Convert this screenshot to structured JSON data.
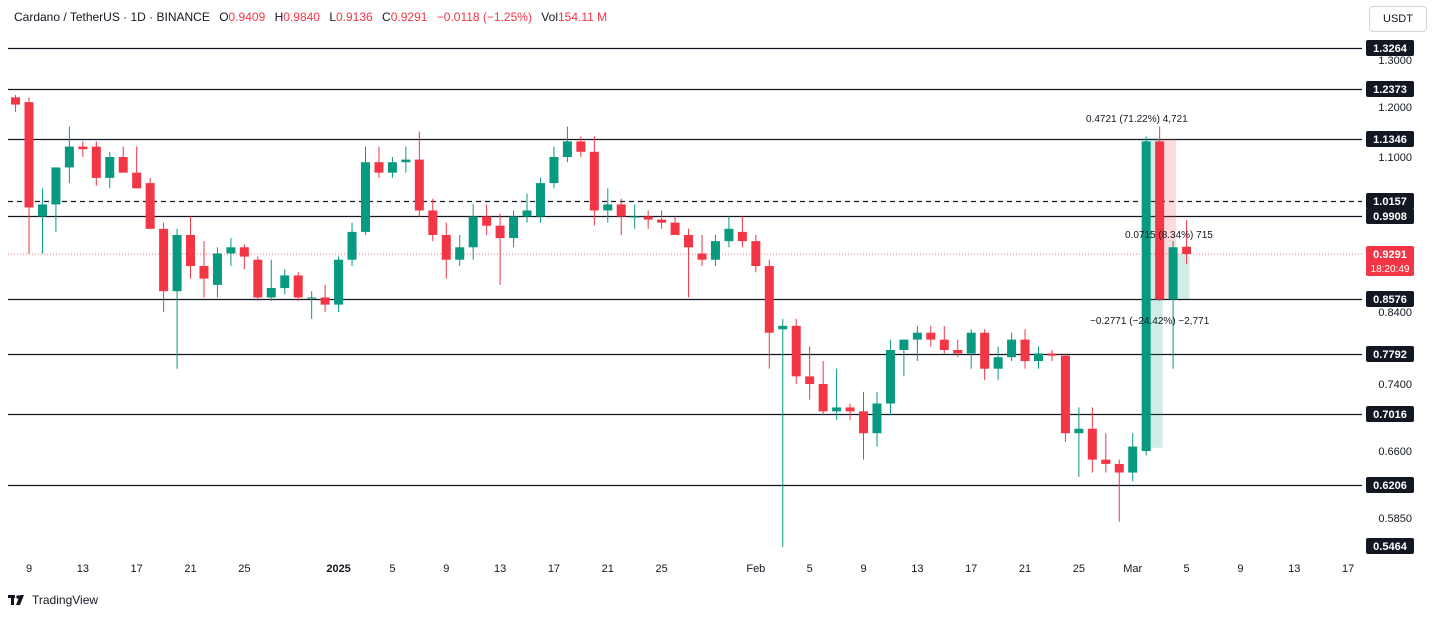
{
  "header": {
    "symbol": "Cardano / TetherUS · 1D · BINANCE",
    "o_label": "O",
    "o_value": "0.9409",
    "h_label": "H",
    "h_value": "0.9840",
    "l_label": "L",
    "l_value": "0.9136",
    "c_label": "C",
    "c_value": "0.9291",
    "change": "−0.0118 (−1.25%)",
    "vol_label": "Vol",
    "vol_value": "154.11 M"
  },
  "currency_button": "USDT",
  "brand": "TradingView",
  "colors": {
    "up": "#089981",
    "down": "#f23645",
    "line": "#131722",
    "axis_text": "#131722",
    "current_price": "#f23645"
  },
  "chart_data": {
    "type": "candlestick",
    "title": "Cardano / TetherUS · 1D · BINANCE",
    "y_axis_ticks": [
      "1.3000",
      "1.2000",
      "1.1000",
      "0.8400",
      "0.7400",
      "0.6600",
      "0.5850"
    ],
    "y_axis_tick_values": [
      1.3,
      1.2,
      1.1,
      0.84,
      0.74,
      0.66,
      0.585
    ],
    "x_axis_ticks": [
      {
        "label": "9",
        "day": 0,
        "bold": false
      },
      {
        "label": "13",
        "day": 4,
        "bold": false
      },
      {
        "label": "17",
        "day": 8,
        "bold": false
      },
      {
        "label": "21",
        "day": 12,
        "bold": false
      },
      {
        "label": "25",
        "day": 16,
        "bold": false
      },
      {
        "label": "2025",
        "day": 23,
        "bold": true
      },
      {
        "label": "5",
        "day": 27,
        "bold": false
      },
      {
        "label": "9",
        "day": 31,
        "bold": false
      },
      {
        "label": "13",
        "day": 35,
        "bold": false
      },
      {
        "label": "17",
        "day": 39,
        "bold": false
      },
      {
        "label": "21",
        "day": 43,
        "bold": false
      },
      {
        "label": "25",
        "day": 47,
        "bold": false
      },
      {
        "label": "Feb",
        "day": 54,
        "bold": false
      },
      {
        "label": "5",
        "day": 58,
        "bold": false
      },
      {
        "label": "9",
        "day": 62,
        "bold": false
      },
      {
        "label": "13",
        "day": 66,
        "bold": false
      },
      {
        "label": "17",
        "day": 70,
        "bold": false
      },
      {
        "label": "21",
        "day": 74,
        "bold": false
      },
      {
        "label": "25",
        "day": 78,
        "bold": false
      },
      {
        "label": "Mar",
        "day": 82,
        "bold": false
      },
      {
        "label": "5",
        "day": 86,
        "bold": false
      },
      {
        "label": "9",
        "day": 90,
        "bold": false
      },
      {
        "label": "13",
        "day": 94,
        "bold": false
      },
      {
        "label": "17",
        "day": 98,
        "bold": false
      }
    ],
    "levels": [
      {
        "label": "1.3264",
        "value": 1.3264,
        "style": "solid"
      },
      {
        "label": "1.2373",
        "value": 1.2373,
        "style": "solid"
      },
      {
        "label": "1.1346",
        "value": 1.1346,
        "style": "solid"
      },
      {
        "label": "1.0157",
        "value": 1.0157,
        "style": "dashed"
      },
      {
        "label": "0.9908",
        "value": 0.9908,
        "style": "solid"
      },
      {
        "label": "0.8576",
        "value": 0.8576,
        "style": "solid"
      },
      {
        "label": "0.7792",
        "value": 0.7792,
        "style": "solid"
      },
      {
        "label": "0.7016",
        "value": 0.7016,
        "style": "solid"
      },
      {
        "label": "0.6206",
        "value": 0.6206,
        "style": "solid"
      },
      {
        "label": "0.5464",
        "value": 0.5464,
        "style": "plain"
      }
    ],
    "current_price": {
      "label": "0.9291",
      "value": 0.9291,
      "countdown": "18:20:49"
    },
    "measurements": [
      {
        "label": "0.4721 (71.22%) 4,721",
        "from": 0.6636,
        "to": 1.1357,
        "day_start": 83,
        "day_end": 84,
        "color": "#089981"
      },
      {
        "label": "−0.2771 (−24.42%) −2,771",
        "from": 1.1347,
        "to": 0.8576,
        "day_start": 84,
        "day_end": 85,
        "color": "#f23645"
      },
      {
        "label": "0.0715 (8.34%) 715",
        "from": 0.8576,
        "to": 0.9291,
        "day_start": 85,
        "day_end": 86,
        "color": "#089981"
      }
    ],
    "candles": [
      {
        "day": -1,
        "o": 1.22,
        "h": 1.225,
        "l": 1.19,
        "c": 1.205
      },
      {
        "day": 0,
        "o": 1.21,
        "h": 1.22,
        "l": 0.93,
        "c": 1.005
      },
      {
        "day": 1,
        "o": 0.99,
        "h": 1.04,
        "l": 0.93,
        "c": 1.01
      },
      {
        "day": 2,
        "o": 1.01,
        "h": 1.08,
        "l": 0.965,
        "c": 1.08
      },
      {
        "day": 3,
        "o": 1.08,
        "h": 1.16,
        "l": 1.05,
        "c": 1.12
      },
      {
        "day": 4,
        "o": 1.12,
        "h": 1.13,
        "l": 1.1,
        "c": 1.115
      },
      {
        "day": 5,
        "o": 1.12,
        "h": 1.13,
        "l": 1.045,
        "c": 1.06
      },
      {
        "day": 6,
        "o": 1.06,
        "h": 1.11,
        "l": 1.04,
        "c": 1.1
      },
      {
        "day": 7,
        "o": 1.1,
        "h": 1.12,
        "l": 1.07,
        "c": 1.07
      },
      {
        "day": 8,
        "o": 1.07,
        "h": 1.12,
        "l": 1.04,
        "c": 1.04
      },
      {
        "day": 9,
        "o": 1.05,
        "h": 1.06,
        "l": 0.97,
        "c": 0.97
      },
      {
        "day": 10,
        "o": 0.97,
        "h": 0.98,
        "l": 0.84,
        "c": 0.87
      },
      {
        "day": 11,
        "o": 0.87,
        "h": 0.97,
        "l": 0.76,
        "c": 0.96
      },
      {
        "day": 12,
        "o": 0.96,
        "h": 0.99,
        "l": 0.89,
        "c": 0.91
      },
      {
        "day": 13,
        "o": 0.91,
        "h": 0.95,
        "l": 0.86,
        "c": 0.89
      },
      {
        "day": 14,
        "o": 0.88,
        "h": 0.94,
        "l": 0.86,
        "c": 0.93
      },
      {
        "day": 15,
        "o": 0.93,
        "h": 0.955,
        "l": 0.91,
        "c": 0.94
      },
      {
        "day": 16,
        "o": 0.94,
        "h": 0.945,
        "l": 0.905,
        "c": 0.925
      },
      {
        "day": 17,
        "o": 0.92,
        "h": 0.925,
        "l": 0.855,
        "c": 0.86
      },
      {
        "day": 18,
        "o": 0.86,
        "h": 0.92,
        "l": 0.855,
        "c": 0.875
      },
      {
        "day": 19,
        "o": 0.875,
        "h": 0.905,
        "l": 0.865,
        "c": 0.895
      },
      {
        "day": 20,
        "o": 0.895,
        "h": 0.9,
        "l": 0.855,
        "c": 0.86
      },
      {
        "day": 21,
        "o": 0.86,
        "h": 0.87,
        "l": 0.83,
        "c": 0.86
      },
      {
        "day": 22,
        "o": 0.86,
        "h": 0.88,
        "l": 0.84,
        "c": 0.85
      },
      {
        "day": 23,
        "o": 0.85,
        "h": 0.925,
        "l": 0.84,
        "c": 0.92
      },
      {
        "day": 24,
        "o": 0.92,
        "h": 0.98,
        "l": 0.91,
        "c": 0.965
      },
      {
        "day": 25,
        "o": 0.965,
        "h": 1.12,
        "l": 0.96,
        "c": 1.09
      },
      {
        "day": 26,
        "o": 1.09,
        "h": 1.12,
        "l": 1.06,
        "c": 1.07
      },
      {
        "day": 27,
        "o": 1.07,
        "h": 1.1,
        "l": 1.06,
        "c": 1.09
      },
      {
        "day": 28,
        "o": 1.09,
        "h": 1.12,
        "l": 1.07,
        "c": 1.095
      },
      {
        "day": 29,
        "o": 1.095,
        "h": 1.15,
        "l": 0.99,
        "c": 1.0
      },
      {
        "day": 30,
        "o": 1.0,
        "h": 1.02,
        "l": 0.95,
        "c": 0.96
      },
      {
        "day": 31,
        "o": 0.96,
        "h": 0.98,
        "l": 0.89,
        "c": 0.92
      },
      {
        "day": 32,
        "o": 0.92,
        "h": 0.96,
        "l": 0.91,
        "c": 0.94
      },
      {
        "day": 33,
        "o": 0.94,
        "h": 1.01,
        "l": 0.92,
        "c": 0.99
      },
      {
        "day": 34,
        "o": 0.99,
        "h": 1.01,
        "l": 0.96,
        "c": 0.975
      },
      {
        "day": 35,
        "o": 0.975,
        "h": 0.995,
        "l": 0.88,
        "c": 0.955
      },
      {
        "day": 36,
        "o": 0.955,
        "h": 1.0,
        "l": 0.94,
        "c": 0.99
      },
      {
        "day": 37,
        "o": 0.99,
        "h": 1.03,
        "l": 0.98,
        "c": 1.0
      },
      {
        "day": 38,
        "o": 0.99,
        "h": 1.06,
        "l": 0.98,
        "c": 1.05
      },
      {
        "day": 39,
        "o": 1.05,
        "h": 1.12,
        "l": 1.04,
        "c": 1.1
      },
      {
        "day": 40,
        "o": 1.1,
        "h": 1.16,
        "l": 1.09,
        "c": 1.13
      },
      {
        "day": 41,
        "o": 1.13,
        "h": 1.14,
        "l": 1.1,
        "c": 1.11
      },
      {
        "day": 42,
        "o": 1.11,
        "h": 1.14,
        "l": 0.975,
        "c": 1.0
      },
      {
        "day": 43,
        "o": 1.0,
        "h": 1.04,
        "l": 0.98,
        "c": 1.01
      },
      {
        "day": 44,
        "o": 1.01,
        "h": 1.02,
        "l": 0.96,
        "c": 0.99
      },
      {
        "day": 45,
        "o": 0.99,
        "h": 1.01,
        "l": 0.97,
        "c": 0.99
      },
      {
        "day": 46,
        "o": 0.99,
        "h": 1.0,
        "l": 0.97,
        "c": 0.985
      },
      {
        "day": 47,
        "o": 0.985,
        "h": 1.0,
        "l": 0.97,
        "c": 0.98
      },
      {
        "day": 48,
        "o": 0.98,
        "h": 0.99,
        "l": 0.96,
        "c": 0.96
      },
      {
        "day": 49,
        "o": 0.96,
        "h": 0.97,
        "l": 0.86,
        "c": 0.94
      },
      {
        "day": 50,
        "o": 0.93,
        "h": 0.96,
        "l": 0.91,
        "c": 0.92
      },
      {
        "day": 51,
        "o": 0.92,
        "h": 0.96,
        "l": 0.91,
        "c": 0.95
      },
      {
        "day": 52,
        "o": 0.95,
        "h": 0.99,
        "l": 0.94,
        "c": 0.97
      },
      {
        "day": 53,
        "o": 0.965,
        "h": 0.99,
        "l": 0.94,
        "c": 0.95
      },
      {
        "day": 54,
        "o": 0.95,
        "h": 0.96,
        "l": 0.9,
        "c": 0.91
      },
      {
        "day": 55,
        "o": 0.91,
        "h": 0.92,
        "l": 0.76,
        "c": 0.81
      },
      {
        "day": 56,
        "o": 0.815,
        "h": 0.83,
        "l": 0.545,
        "c": 0.82
      },
      {
        "day": 57,
        "o": 0.82,
        "h": 0.83,
        "l": 0.74,
        "c": 0.75
      },
      {
        "day": 58,
        "o": 0.75,
        "h": 0.79,
        "l": 0.72,
        "c": 0.74
      },
      {
        "day": 59,
        "o": 0.74,
        "h": 0.77,
        "l": 0.7,
        "c": 0.705
      },
      {
        "day": 60,
        "o": 0.705,
        "h": 0.76,
        "l": 0.695,
        "c": 0.71
      },
      {
        "day": 61,
        "o": 0.71,
        "h": 0.715,
        "l": 0.695,
        "c": 0.705
      },
      {
        "day": 62,
        "o": 0.705,
        "h": 0.73,
        "l": 0.65,
        "c": 0.68
      },
      {
        "day": 63,
        "o": 0.68,
        "h": 0.73,
        "l": 0.665,
        "c": 0.715
      },
      {
        "day": 64,
        "o": 0.715,
        "h": 0.8,
        "l": 0.7,
        "c": 0.785
      },
      {
        "day": 65,
        "o": 0.785,
        "h": 0.8,
        "l": 0.75,
        "c": 0.8
      },
      {
        "day": 66,
        "o": 0.8,
        "h": 0.82,
        "l": 0.77,
        "c": 0.81
      },
      {
        "day": 67,
        "o": 0.81,
        "h": 0.82,
        "l": 0.79,
        "c": 0.8
      },
      {
        "day": 68,
        "o": 0.8,
        "h": 0.82,
        "l": 0.78,
        "c": 0.785
      },
      {
        "day": 69,
        "o": 0.785,
        "h": 0.8,
        "l": 0.775,
        "c": 0.78
      },
      {
        "day": 70,
        "o": 0.78,
        "h": 0.815,
        "l": 0.76,
        "c": 0.81
      },
      {
        "day": 71,
        "o": 0.81,
        "h": 0.815,
        "l": 0.745,
        "c": 0.76
      },
      {
        "day": 72,
        "o": 0.76,
        "h": 0.79,
        "l": 0.745,
        "c": 0.775
      },
      {
        "day": 73,
        "o": 0.775,
        "h": 0.81,
        "l": 0.77,
        "c": 0.8
      },
      {
        "day": 74,
        "o": 0.8,
        "h": 0.815,
        "l": 0.76,
        "c": 0.77
      },
      {
        "day": 75,
        "o": 0.77,
        "h": 0.79,
        "l": 0.76,
        "c": 0.78
      },
      {
        "day": 76,
        "o": 0.78,
        "h": 0.785,
        "l": 0.77,
        "c": 0.777
      },
      {
        "day": 77,
        "o": 0.777,
        "h": 0.78,
        "l": 0.67,
        "c": 0.68
      },
      {
        "day": 78,
        "o": 0.68,
        "h": 0.71,
        "l": 0.63,
        "c": 0.685
      },
      {
        "day": 79,
        "o": 0.685,
        "h": 0.71,
        "l": 0.635,
        "c": 0.65
      },
      {
        "day": 80,
        "o": 0.65,
        "h": 0.68,
        "l": 0.635,
        "c": 0.645
      },
      {
        "day": 81,
        "o": 0.645,
        "h": 0.65,
        "l": 0.58,
        "c": 0.635
      },
      {
        "day": 82,
        "o": 0.635,
        "h": 0.68,
        "l": 0.625,
        "c": 0.665
      },
      {
        "day": 83,
        "o": 0.66,
        "h": 1.14,
        "l": 0.655,
        "c": 1.13
      },
      {
        "day": 84,
        "o": 1.13,
        "h": 1.16,
        "l": 0.855,
        "c": 0.857
      },
      {
        "day": 85,
        "o": 0.857,
        "h": 0.95,
        "l": 0.76,
        "c": 0.94
      },
      {
        "day": 86,
        "o": 0.9409,
        "h": 0.984,
        "l": 0.9136,
        "c": 0.9291
      }
    ]
  }
}
